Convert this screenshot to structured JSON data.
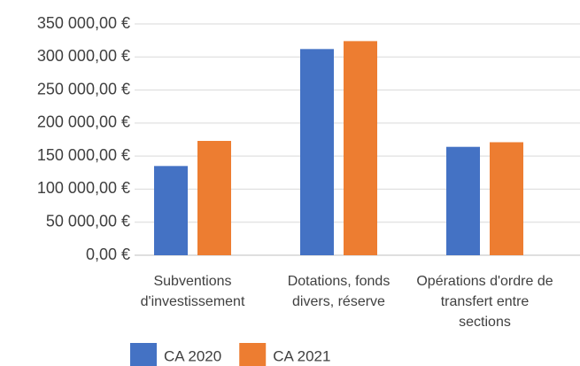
{
  "chart_data": {
    "type": "bar",
    "categories": [
      "Subventions d'investissement",
      "Dotations, fonds divers, réserve",
      "Opérations d'ordre de transfert entre sections"
    ],
    "series": [
      {
        "name": "CA 2020",
        "color": "#4472c4",
        "values": [
          135000,
          312000,
          164000
        ]
      },
      {
        "name": "CA 2021",
        "color": "#ed7d31",
        "values": [
          173000,
          324000,
          171000
        ]
      }
    ],
    "ylim": [
      0,
      350000
    ],
    "yticks": [
      {
        "value": 0,
        "label": "0,00 €"
      },
      {
        "value": 50000,
        "label": "50 000,00 €"
      },
      {
        "value": 100000,
        "label": "100 000,00 €"
      },
      {
        "value": 150000,
        "label": "150 000,00 €"
      },
      {
        "value": 200000,
        "label": "200 000,00 €"
      },
      {
        "value": 250000,
        "label": "250 000,00 €"
      },
      {
        "value": 300000,
        "label": "300 000,00 €"
      },
      {
        "value": 350000,
        "label": "350 000,00 €"
      }
    ],
    "grid": true
  }
}
